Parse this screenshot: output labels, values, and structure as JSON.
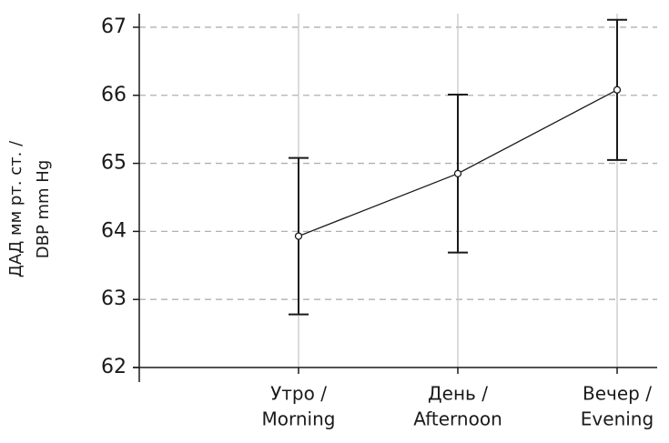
{
  "chart_data": {
    "type": "line",
    "ylabel": [
      "ДАД мм рт. ст. /",
      "DBP mm Hg"
    ],
    "categories": [
      [
        "Утро /",
        "Morning"
      ],
      [
        "День /",
        "Afternoon"
      ],
      [
        "Вечер /",
        "Evening"
      ]
    ],
    "series": [
      {
        "color": "#1a1a1a",
        "values": [
          63.93,
          64.85,
          66.08
        ],
        "errors": [
          1.15,
          1.16,
          1.03
        ]
      }
    ],
    "ylim": [
      62,
      67.2
    ],
    "yticks": [
      62,
      63,
      64,
      65,
      66,
      67
    ],
    "grid": true
  }
}
